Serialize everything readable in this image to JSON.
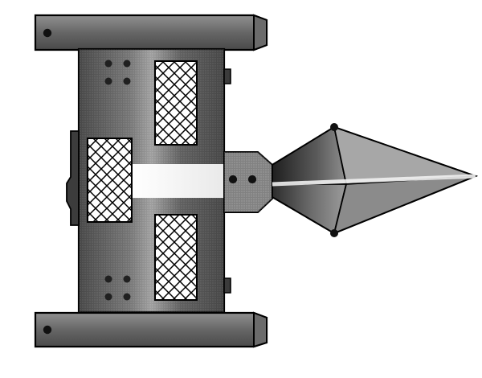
{
  "image": {
    "subject": "spaceship",
    "style": "grayscale halftone illustration",
    "colors": {
      "outline": "#000000",
      "dark_fill": "#4f4f4f",
      "mid_fill": "#6a6a6a",
      "light_fill": "#cfcfcf",
      "highlight": "#ffffff"
    }
  }
}
